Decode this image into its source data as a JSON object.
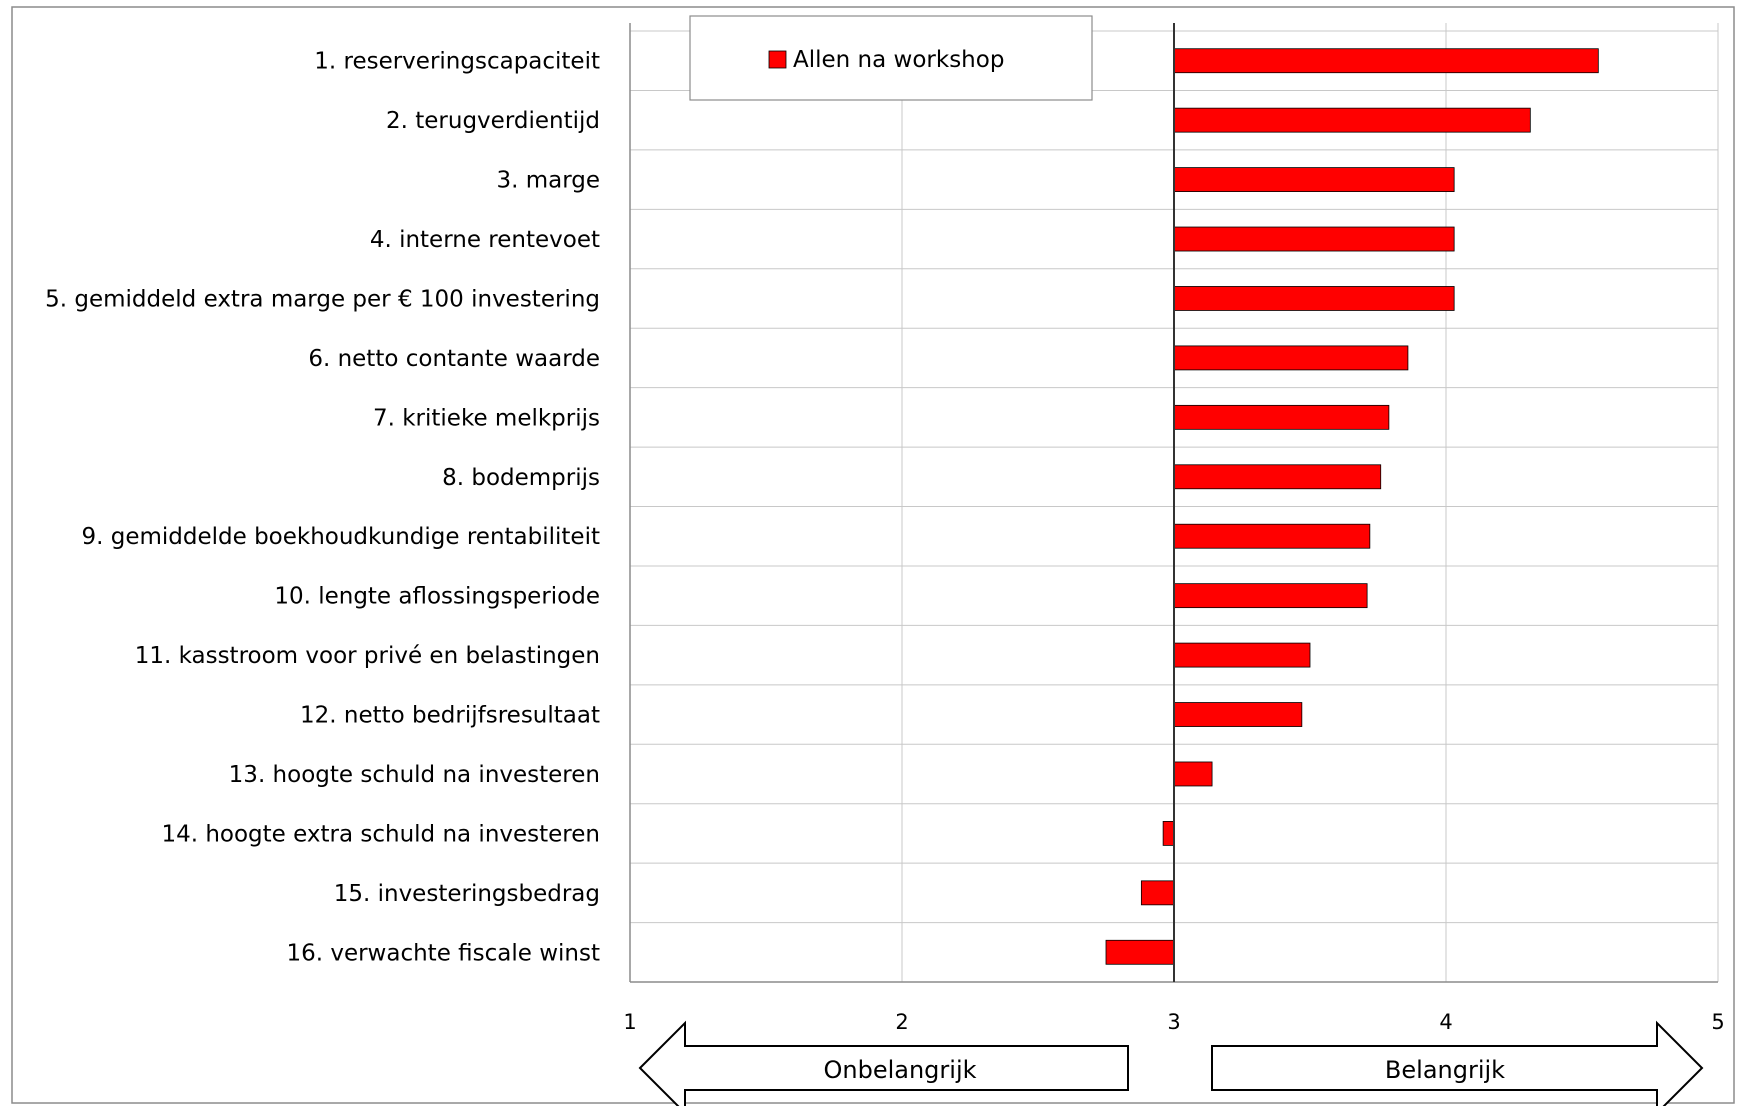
{
  "chart_data": {
    "type": "bar",
    "orientation": "horizontal",
    "baseline": 3,
    "xlim": [
      1,
      5
    ],
    "xticks": [
      1,
      2,
      3,
      4,
      5
    ],
    "grid": true,
    "legend_position": "top-left",
    "categories": [
      "1. reserveringscapaciteit",
      "2. terugverdientijd",
      "3. marge",
      "4. interne rentevoet",
      "5. gemiddeld extra marge per € 100 investering",
      "6. netto contante waarde",
      "7. kritieke melkprijs",
      "8. bodemprijs",
      "9. gemiddelde boekhoudkundige rentabiliteit",
      "10. lengte aflossingsperiode",
      "11. kasstroom voor privé en belastingen",
      "12. netto bedrijfsresultaat",
      "13. hoogte schuld na investeren",
      "14. hoogte extra schuld na investeren",
      "15. investeringsbedrag",
      "16. verwachte fiscale winst"
    ],
    "series": [
      {
        "name": "Allen na workshop",
        "color": "#ff0000",
        "values": [
          4.56,
          4.31,
          4.03,
          4.03,
          4.03,
          3.86,
          3.79,
          3.76,
          3.72,
          3.71,
          3.5,
          3.47,
          3.14,
          2.96,
          2.88,
          2.75
        ]
      }
    ],
    "arrows": {
      "left": "Onbelangrijk",
      "right": "Belangrijk"
    }
  }
}
